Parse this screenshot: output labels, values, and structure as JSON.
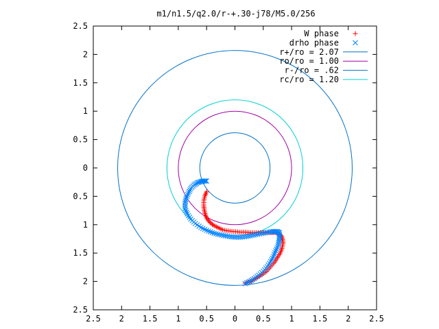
{
  "chart_data": {
    "type": "scatter",
    "title": "m1/n1.5/q2.0/r-+.30-j78/M5.0/256",
    "xlabel": "",
    "ylabel": "",
    "xlim": [
      -2.5,
      2.5
    ],
    "ylim": [
      -2.5,
      2.5
    ],
    "x_tick_values": [
      -2.5,
      -2,
      -1.5,
      -1,
      -0.5,
      0,
      0.5,
      1,
      1.5,
      2,
      2.5
    ],
    "x_tick_labels": [
      "2.5",
      "2",
      "1.5",
      "1",
      "0.5",
      "0",
      "0.5",
      "1",
      "1.5",
      "2",
      "2.5"
    ],
    "y_tick_values": [
      2.5,
      2,
      1.5,
      1,
      0.5,
      0,
      -0.5,
      -1,
      -1.5,
      -2,
      -2.5
    ],
    "y_tick_labels": [
      "2.5",
      "2",
      "1.5",
      "1",
      "0.5",
      "0",
      "0.5",
      "1",
      "1.5",
      "2",
      "2.5"
    ],
    "grid": false,
    "legend_position": "top-right",
    "legend": [
      {
        "label": "W phase",
        "kind": "marker",
        "marker": "plus",
        "color": "#ff0000"
      },
      {
        "label": "drho phase",
        "kind": "marker",
        "marker": "cross",
        "color": "#0080ff"
      },
      {
        "label": "r+/ro = 2.07",
        "kind": "line",
        "color": "#0070c8"
      },
      {
        "label": "ro/ro = 1.00",
        "kind": "line",
        "color": "#a000a0"
      },
      {
        "label": "r-/ro = .62",
        "kind": "line",
        "color": "#0070c8"
      },
      {
        "label": "rc/ro = 1.20",
        "kind": "line",
        "color": "#00d0d0"
      }
    ],
    "circles": [
      {
        "radius": 2.07,
        "color": "#0070c8"
      },
      {
        "radius": 1.0,
        "color": "#a000a0"
      },
      {
        "radius": 0.62,
        "color": "#0070c8"
      },
      {
        "radius": 1.2,
        "color": "#00d0d0"
      }
    ],
    "series": [
      {
        "name": "W phase",
        "marker": "plus",
        "color": "#ff0000",
        "x": [
          0.18,
          0.25,
          0.32,
          0.4,
          0.48,
          0.56,
          0.63,
          0.7,
          0.75,
          0.8,
          0.83,
          0.85,
          0.84,
          0.82,
          0.78,
          0.72,
          0.65,
          0.57,
          0.48,
          0.38,
          0.28,
          0.18,
          0.08,
          -0.02,
          -0.12,
          -0.22,
          -0.3,
          -0.38,
          -0.44,
          -0.49,
          -0.52,
          -0.54,
          -0.55,
          -0.55,
          -0.53,
          -0.5
        ],
        "y": [
          -2.03,
          -2.01,
          -1.97,
          -1.93,
          -1.88,
          -1.82,
          -1.74,
          -1.66,
          -1.58,
          -1.5,
          -1.42,
          -1.33,
          -1.26,
          -1.2,
          -1.16,
          -1.14,
          -1.14,
          -1.14,
          -1.14,
          -1.14,
          -1.14,
          -1.13,
          -1.13,
          -1.12,
          -1.11,
          -1.09,
          -1.05,
          -1.01,
          -0.96,
          -0.9,
          -0.83,
          -0.75,
          -0.67,
          -0.58,
          -0.49,
          -0.42
        ]
      },
      {
        "name": "drho phase",
        "marker": "cross",
        "color": "#0080ff",
        "x": [
          0.18,
          0.26,
          0.34,
          0.42,
          0.5,
          0.57,
          0.63,
          0.68,
          0.72,
          0.76,
          0.78,
          0.79,
          0.78,
          0.74,
          0.68,
          0.6,
          0.5,
          0.4,
          0.3,
          0.2,
          0.1,
          0.0,
          -0.1,
          -0.2,
          -0.3,
          -0.4,
          -0.5,
          -0.6,
          -0.7,
          -0.78,
          -0.84,
          -0.88,
          -0.88,
          -0.86,
          -0.82,
          -0.78,
          -0.72,
          -0.66,
          -0.6,
          -0.55,
          -0.5
        ],
        "y": [
          -2.04,
          -2.0,
          -1.95,
          -1.89,
          -1.82,
          -1.74,
          -1.65,
          -1.56,
          -1.46,
          -1.37,
          -1.28,
          -1.2,
          -1.14,
          -1.12,
          -1.12,
          -1.13,
          -1.15,
          -1.17,
          -1.19,
          -1.21,
          -1.22,
          -1.22,
          -1.21,
          -1.19,
          -1.17,
          -1.14,
          -1.1,
          -1.05,
          -0.98,
          -0.9,
          -0.81,
          -0.72,
          -0.62,
          -0.53,
          -0.44,
          -0.36,
          -0.3,
          -0.26,
          -0.24,
          -0.23,
          -0.23
        ]
      }
    ]
  }
}
